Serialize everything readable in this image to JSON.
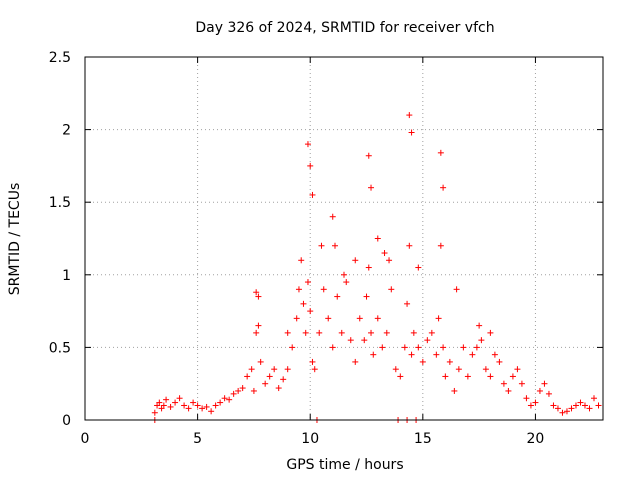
{
  "chart_data": {
    "type": "scatter",
    "title": "Day 326 of 2024, SRMTID for receiver vfch",
    "xlabel": "GPS time / hours",
    "ylabel": "SRMTID / TECUs",
    "xlim": [
      0,
      23
    ],
    "ylim": [
      0,
      2.5
    ],
    "x_ticks": [
      0,
      5,
      10,
      15,
      20
    ],
    "y_ticks": [
      0,
      0.5,
      1,
      1.5,
      2,
      2.5
    ],
    "y_tick_labels": [
      "0",
      "0.5",
      "1",
      "1.5",
      "2",
      "2.5"
    ],
    "grid": true,
    "marker": "+",
    "color": "#ff0000",
    "series": [
      {
        "name": "SRMTID",
        "x": [
          3.1,
          3.2,
          3.3,
          3.4,
          3.5,
          3.6,
          3.8,
          4.0,
          4.2,
          4.4,
          4.6,
          4.8,
          5.0,
          5.2,
          5.4,
          5.6,
          5.8,
          6.0,
          6.2,
          6.4,
          6.6,
          6.8,
          7.0,
          7.2,
          7.4,
          7.5,
          7.6,
          7.7,
          7.8,
          8.0,
          8.2,
          8.4,
          8.6,
          8.8,
          9.0,
          9.2,
          9.4,
          9.5,
          9.6,
          9.7,
          9.8,
          9.9,
          10.0,
          10.1,
          10.2,
          10.4,
          10.6,
          10.8,
          11.0,
          11.2,
          11.4,
          11.6,
          11.8,
          12.0,
          12.2,
          12.4,
          12.5,
          12.6,
          12.7,
          12.8,
          13.0,
          13.2,
          13.4,
          13.6,
          13.8,
          14.0,
          14.2,
          14.3,
          14.4,
          14.5,
          14.6,
          14.8,
          15.0,
          15.2,
          15.4,
          15.6,
          15.7,
          15.8,
          15.9,
          16.0,
          16.2,
          16.4,
          16.6,
          16.8,
          17.0,
          17.2,
          17.4,
          17.6,
          17.8,
          18.0,
          18.2,
          18.4,
          18.6,
          18.8,
          19.0,
          19.2,
          19.4,
          19.6,
          19.8,
          20.0,
          20.2,
          20.4,
          20.6,
          20.8,
          21.0,
          21.2,
          21.4,
          21.6,
          21.8,
          22.0,
          22.2,
          22.4,
          22.6,
          22.8,
          9.9,
          10.0,
          10.1,
          12.6,
          12.7,
          14.4,
          14.5,
          15.8,
          15.9,
          7.6,
          7.7,
          11.0,
          11.1,
          13.0,
          13.3,
          14.8,
          16.5,
          17.5,
          18.0,
          12.0,
          11.5,
          9.0,
          10.5,
          13.5,
          3.1,
          10.3,
          13.9,
          14.3,
          14.7
        ],
        "y": [
          0.05,
          0.1,
          0.12,
          0.08,
          0.1,
          0.14,
          0.09,
          0.12,
          0.15,
          0.1,
          0.08,
          0.12,
          0.1,
          0.08,
          0.09,
          0.06,
          0.1,
          0.12,
          0.15,
          0.14,
          0.18,
          0.2,
          0.22,
          0.3,
          0.35,
          0.2,
          0.6,
          0.85,
          0.4,
          0.25,
          0.3,
          0.35,
          0.22,
          0.28,
          0.35,
          0.5,
          0.7,
          0.9,
          1.1,
          0.8,
          0.6,
          0.95,
          0.75,
          0.4,
          0.35,
          0.6,
          0.9,
          0.7,
          0.5,
          0.85,
          0.6,
          0.95,
          0.55,
          0.4,
          0.7,
          0.55,
          0.85,
          1.05,
          0.6,
          0.45,
          0.7,
          0.5,
          0.6,
          0.9,
          0.35,
          0.3,
          0.5,
          0.8,
          1.2,
          0.45,
          0.6,
          0.5,
          0.4,
          0.55,
          0.6,
          0.45,
          0.7,
          1.2,
          0.5,
          0.3,
          0.4,
          0.2,
          0.35,
          0.5,
          0.3,
          0.45,
          0.5,
          0.55,
          0.35,
          0.3,
          0.45,
          0.4,
          0.25,
          0.2,
          0.3,
          0.35,
          0.25,
          0.15,
          0.1,
          0.12,
          0.2,
          0.25,
          0.18,
          0.1,
          0.08,
          0.05,
          0.06,
          0.08,
          0.1,
          0.12,
          0.1,
          0.08,
          0.15,
          0.1,
          1.9,
          1.75,
          1.55,
          1.82,
          1.6,
          2.1,
          1.98,
          1.84,
          1.6,
          0.88,
          0.65,
          1.4,
          1.2,
          1.25,
          1.15,
          1.05,
          0.9,
          0.65,
          0.6,
          1.1,
          1.0,
          0.6,
          1.2,
          1.1,
          0.0,
          0.0,
          0.0,
          0.0,
          0.0
        ]
      }
    ]
  }
}
